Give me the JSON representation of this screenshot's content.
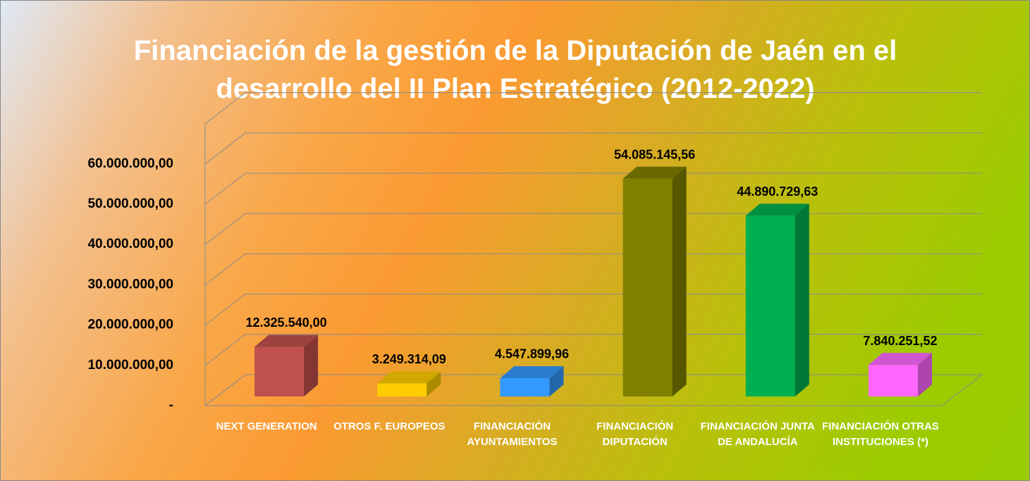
{
  "chart_data": {
    "type": "bar3d",
    "title": "Financiación de la gestión de la Diputación de Jaén en el desarrollo del II Plan Estratégico (2012-2022)",
    "categories": [
      "NEXT GENERATION",
      "OTROS F. EUROPEOS",
      "FINANCIACIÓN AYUNTAMIENTOS",
      "FINANCIACIÓN DIPUTACIÓN",
      "FINANCIACIÓN JUNTA DE ANDALUCÍA",
      "FINANCIACIÓN OTRAS INSTITUCIONES (*)"
    ],
    "values": [
      12325540.0,
      3249314.09,
      4547899.96,
      54085145.56,
      44890729.63,
      7840251.52
    ],
    "value_labels": [
      "12.325.540,00",
      "3.249.314,09",
      "4.547.899,96",
      "54.085.145,56",
      "44.890.729,63",
      "7.840.251,52"
    ],
    "colors": [
      "#c0504d",
      "#ffcc00",
      "#3399ff",
      "#808000",
      "#00b050",
      "#ff66ff"
    ],
    "ylim": [
      0,
      70000000
    ],
    "yticks": [
      {
        "value": 0,
        "label": "-"
      },
      {
        "value": 10000000,
        "label": "10.000.000,00"
      },
      {
        "value": 20000000,
        "label": "20.000.000,00"
      },
      {
        "value": 30000000,
        "label": "30.000.000,00"
      },
      {
        "value": 40000000,
        "label": "40.000.000,00"
      },
      {
        "value": 50000000,
        "label": "50.000.000,00"
      },
      {
        "value": 60000000,
        "label": "60.000.000,00"
      }
    ],
    "grid": true
  }
}
